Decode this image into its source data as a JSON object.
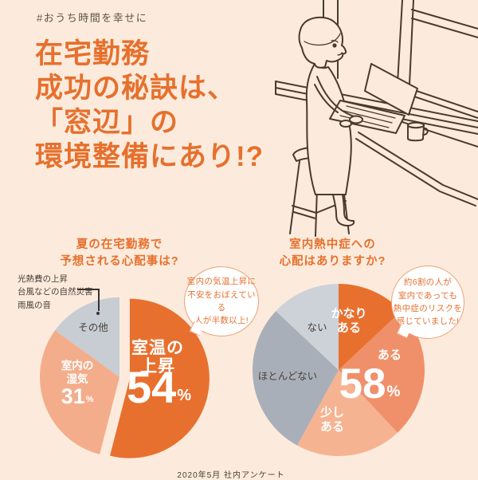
{
  "page": {
    "background": "#fcebdc",
    "accent": "#e6702d",
    "ink": "#4a3a2e"
  },
  "header": {
    "hashtag": "#おうち時間を幸せに",
    "title_lines": [
      "在宅勤務",
      "成功の秘訣は、",
      "「窓辺」の",
      "環境整備にあり!?"
    ]
  },
  "left_chart": {
    "title_lines": [
      "夏の在宅勤務で",
      "予想される心配事は?"
    ],
    "callout_lines": [
      "室内の気温上昇に",
      "不安をおぼえている",
      "人が半数以上!"
    ],
    "other_breakdown": [
      "光熱費の上昇",
      "台風などの自然災害",
      "雨風の音"
    ],
    "labels": {
      "main_lines": [
        "室温の",
        "上昇"
      ],
      "humidity_lines": [
        "室内の",
        "湿気"
      ],
      "pct": "%"
    }
  },
  "right_chart": {
    "title_lines": [
      "室内熱中症への",
      "心配はありますか?"
    ],
    "callout_lines": [
      "約6割の人が",
      "室内であっても",
      "熱中症のリスクを",
      "感じていました!"
    ],
    "labels": {
      "kanari_lines": [
        "かなり",
        "ある"
      ],
      "sukoshi_lines": [
        "少し",
        "ある"
      ],
      "pct": "%"
    }
  },
  "footer": {
    "source": "2020年5月 社内アンケート"
  },
  "chart_data": [
    {
      "type": "pie",
      "title": "夏の在宅勤務で予想される心配事は?",
      "start_angle_deg": 0,
      "clockwise": true,
      "slices": [
        {
          "label": "室温の上昇",
          "value": 54,
          "color": "#e8702e",
          "exploded": true,
          "text_color": "#ffffff"
        },
        {
          "label": "室内の湿気",
          "value": 31,
          "color": "#f4ad8b",
          "text_color": "#ffffff"
        },
        {
          "label": "その他",
          "value": 15,
          "color": "#c7cdd3",
          "breakdown": [
            "光熱費の上昇",
            "台風などの自然災害",
            "雨風の音"
          ]
        }
      ],
      "annotation": "室内の気温上昇に不安をおぼえている人が半数以上!"
    },
    {
      "type": "pie",
      "title": "室内熱中症への心配はありますか?",
      "start_angle_deg": 0,
      "clockwise": true,
      "slices": [
        {
          "label": "かなりある",
          "value": 13,
          "color": "#e8702e",
          "text_color": "#ffffff"
        },
        {
          "label": "ある",
          "value": 25,
          "color": "#f0906a",
          "text_color": "#ffffff"
        },
        {
          "label": "少しある",
          "value": 20,
          "color": "#f6b392",
          "text_color": "#ffffff"
        },
        {
          "label": "ほとんどない",
          "value": 29,
          "color": "#a9afb8"
        },
        {
          "label": "ない",
          "value": 13,
          "color": "#cdd2d8"
        }
      ],
      "highlight_total": {
        "labels": [
          "かなりある",
          "ある",
          "少しある"
        ],
        "value": 58,
        "shown": "58%"
      },
      "annotation": "約6割の人が室内であっても熱中症のリスクを感じていました!"
    }
  ]
}
